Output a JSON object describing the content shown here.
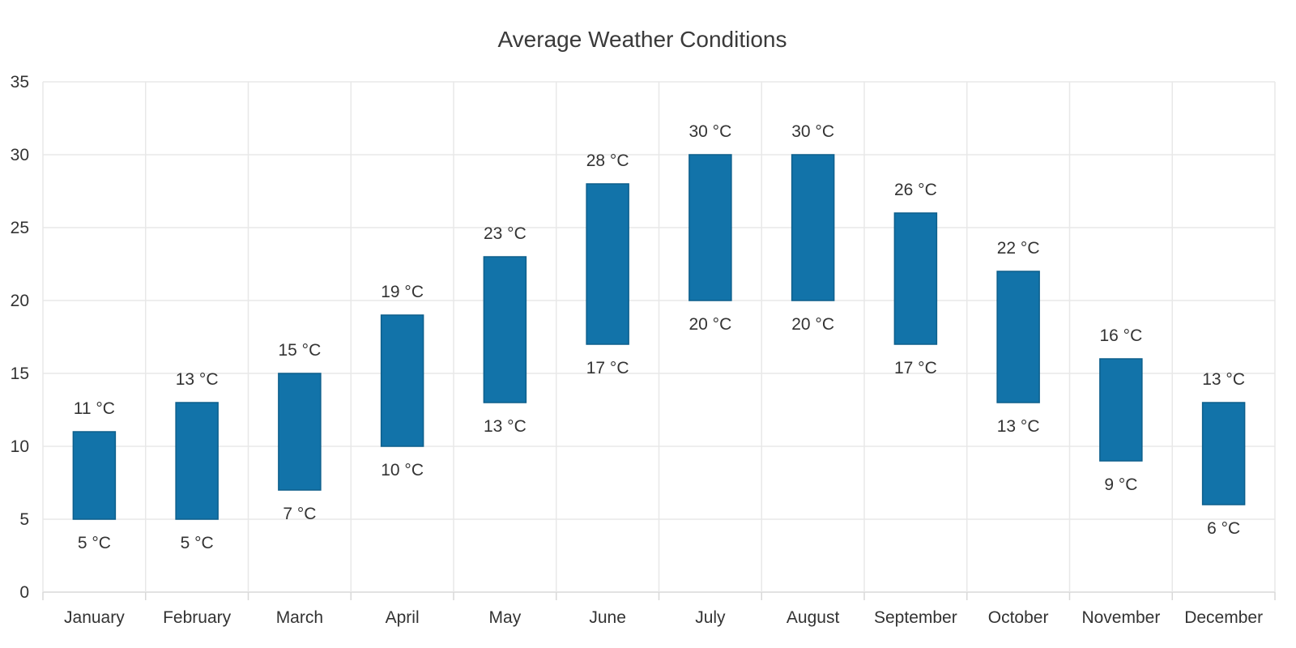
{
  "chart_data": {
    "type": "bar",
    "title": "Average Weather Conditions",
    "categories": [
      "January",
      "February",
      "March",
      "April",
      "May",
      "June",
      "July",
      "August",
      "September",
      "October",
      "November",
      "December"
    ],
    "series": [
      {
        "low": [
          5,
          5,
          7,
          10,
          13,
          17,
          20,
          20,
          17,
          13,
          9,
          6
        ],
        "high": [
          11,
          13,
          15,
          19,
          23,
          28,
          30,
          30,
          26,
          22,
          16,
          13
        ]
      }
    ],
    "value_suffix": " °C",
    "ylim": [
      0,
      35
    ],
    "yticks": [
      0,
      5,
      10,
      15,
      20,
      25,
      30,
      35
    ],
    "grid": true,
    "bar_color": "#1273a9",
    "bar_stroke": "#0d5f8c"
  }
}
